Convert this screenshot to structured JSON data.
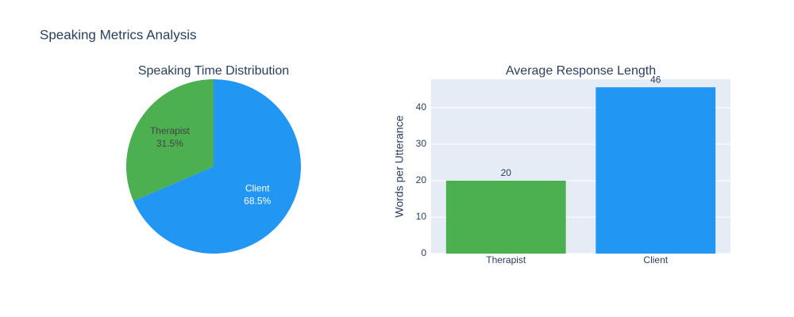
{
  "title": "Speaking Metrics Analysis",
  "chart_data": [
    {
      "type": "pie",
      "title": "Speaking Time Distribution",
      "categories": [
        "Therapist",
        "Client"
      ],
      "values": [
        31.5,
        68.5
      ],
      "value_labels": [
        "31.5%",
        "68.5%"
      ],
      "colors": [
        "#4caf50",
        "#2196f3"
      ]
    },
    {
      "type": "bar",
      "title": "Average Response Length",
      "ylabel": "Words per Utterance",
      "categories": [
        "Therapist",
        "Client"
      ],
      "values": [
        20,
        45.6
      ],
      "value_labels": [
        "20",
        "46"
      ],
      "colors": [
        "#4caf50",
        "#2196f3"
      ],
      "ylim": [
        0,
        47.8
      ],
      "yticks": [
        0,
        10,
        20,
        30,
        40
      ],
      "grid": true
    }
  ]
}
